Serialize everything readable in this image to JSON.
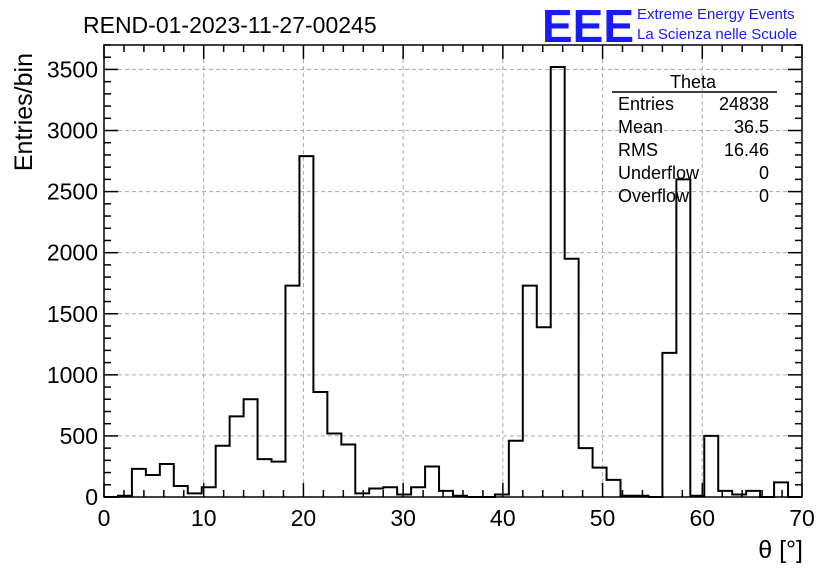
{
  "chart_data": {
    "type": "histogram",
    "title": "REND-01-2023-11-27-00245",
    "xlabel": "θ [°]",
    "ylabel": "Entries/bin",
    "xlim": [
      0,
      70
    ],
    "ylim": [
      0,
      3700
    ],
    "x_ticks": [
      0,
      10,
      20,
      30,
      40,
      50,
      60,
      70
    ],
    "y_ticks": [
      0,
      500,
      1000,
      1500,
      2000,
      2500,
      3000,
      3500
    ],
    "grid": true,
    "bin_width": 1.4,
    "bin_edges_start": 0,
    "values": [
      0,
      10,
      230,
      180,
      270,
      90,
      30,
      80,
      420,
      660,
      800,
      310,
      290,
      1730,
      2790,
      860,
      520,
      430,
      30,
      70,
      80,
      20,
      80,
      250,
      50,
      10,
      0,
      0,
      20,
      460,
      1730,
      1390,
      3520,
      1950,
      400,
      240,
      140,
      10,
      10,
      0,
      1180,
      2600,
      10,
      500,
      50,
      20,
      50,
      0,
      120,
      0
    ],
    "stats_box": {
      "name": "Theta",
      "rows": [
        {
          "label": "Entries",
          "value": "24838"
        },
        {
          "label": "Mean",
          "value": "36.5"
        },
        {
          "label": "RMS",
          "value": "16.46"
        },
        {
          "label": "Underflow",
          "value": "0"
        },
        {
          "label": "Overflow",
          "value": "0"
        }
      ]
    }
  },
  "logo": {
    "main": "EEE",
    "line1": "Extreme Energy Events",
    "line2": "La Scienza nelle Scuole",
    "color": "#1a1aff"
  }
}
